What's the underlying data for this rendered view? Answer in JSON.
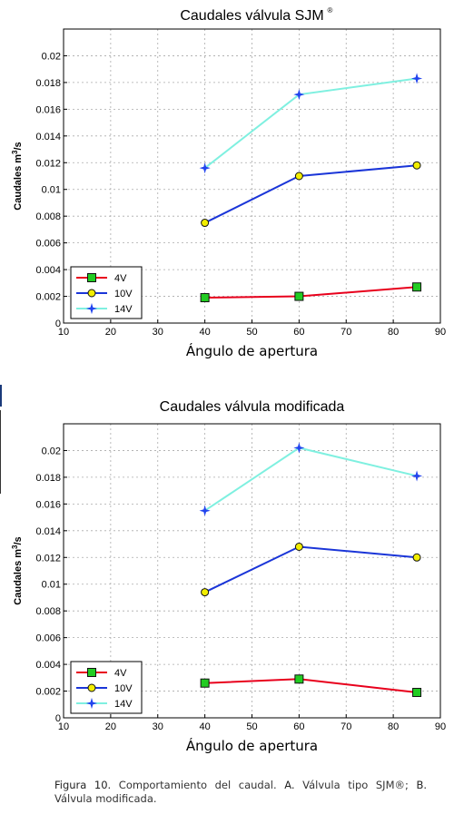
{
  "chart_data": [
    {
      "type": "line",
      "title": "Caudales válvula SJM",
      "title_sup": "®",
      "xlabel": "Ángulo de apertura",
      "ylabel": "Caudales m",
      "ylabel_sup": "3",
      "ylabel_suffix": "/s",
      "xlim": [
        10,
        90
      ],
      "ylim": [
        0,
        0.022
      ],
      "x_ticks": [
        "10",
        "20",
        "30",
        "40",
        "50",
        "60",
        "70",
        "80",
        "90"
      ],
      "y_ticks": [
        "0",
        "0.002",
        "0.004",
        "0.006",
        "0.008",
        "0.01",
        "0.012",
        "0.014",
        "0.016",
        "0.018",
        "0.02"
      ],
      "grid": true,
      "legend_position": "bottom-left",
      "x": [
        40,
        60,
        85
      ],
      "series": [
        {
          "name": "4V",
          "values": [
            0.0019,
            0.002,
            0.0027
          ],
          "color": "#e8001c",
          "marker": "square",
          "marker_color": "#22cc22"
        },
        {
          "name": "10V",
          "values": [
            0.0075,
            0.011,
            0.0118
          ],
          "color": "#1a35d8",
          "marker": "circle",
          "marker_color": "#f2ee00"
        },
        {
          "name": "14V",
          "values": [
            0.0116,
            0.0171,
            0.0183
          ],
          "color": "#7ff0e0",
          "marker": "star",
          "marker_color": "#2244ee"
        }
      ]
    },
    {
      "type": "line",
      "title": "Caudales válvula modificada",
      "title_sup": "",
      "xlabel": "Ángulo de apertura",
      "ylabel": "Caudales m",
      "ylabel_sup": "3",
      "ylabel_suffix": "/s",
      "xlim": [
        10,
        90
      ],
      "ylim": [
        0,
        0.022
      ],
      "x_ticks": [
        "10",
        "20",
        "30",
        "40",
        "50",
        "60",
        "70",
        "80",
        "90"
      ],
      "y_ticks": [
        "0",
        "0.002",
        "0.004",
        "0.006",
        "0.008",
        "0.01",
        "0.012",
        "0.014",
        "0.016",
        "0.018",
        "0.02"
      ],
      "grid": true,
      "legend_position": "bottom-left",
      "x": [
        40,
        60,
        85
      ],
      "series": [
        {
          "name": "4V",
          "values": [
            0.0026,
            0.0029,
            0.0019
          ],
          "color": "#e8001c",
          "marker": "square",
          "marker_color": "#22cc22"
        },
        {
          "name": "10V",
          "values": [
            0.0094,
            0.0128,
            0.012
          ],
          "color": "#1a35d8",
          "marker": "circle",
          "marker_color": "#f2ee00"
        },
        {
          "name": "14V",
          "values": [
            0.0155,
            0.0202,
            0.0181
          ],
          "color": "#7ff0e0",
          "marker": "star",
          "marker_color": "#2244ee"
        }
      ]
    }
  ],
  "caption": {
    "label": "Figura 10.",
    "text_1": " Comportamiento del caudal. ",
    "a": "A.",
    "text_2": " Válvula tipo SJM®; ",
    "b": "B.",
    "text_3": " Válvula modificada."
  }
}
